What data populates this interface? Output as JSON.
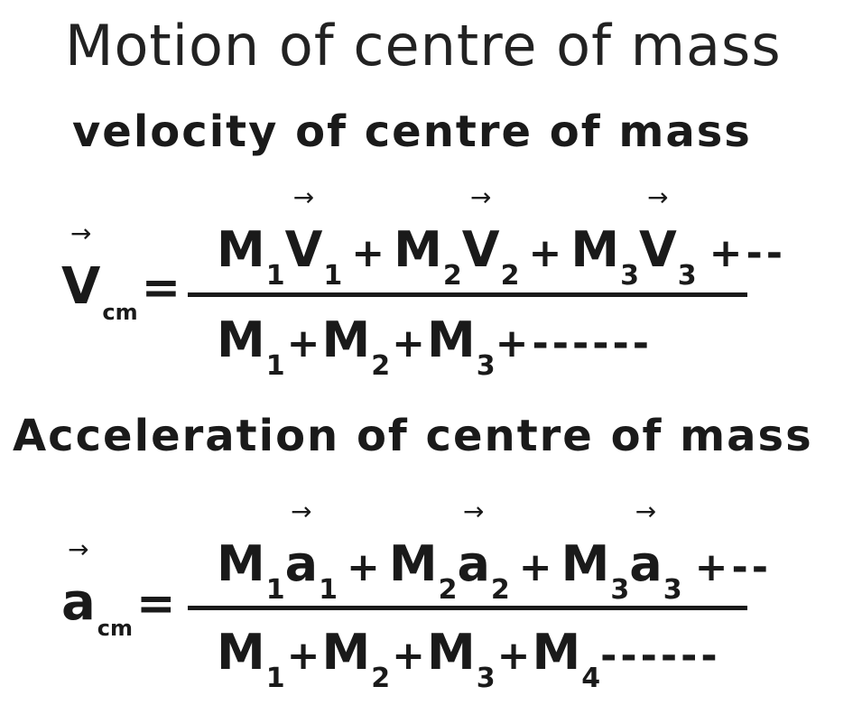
{
  "title": "Motion of centre of mass",
  "velocity": {
    "heading": "velocity of centre of mass",
    "lhs_symbol": "V",
    "lhs_subscript": "cm",
    "equals": "=",
    "arrow": "→",
    "numerator": [
      {
        "m": "M",
        "ms": "1",
        "v": "V",
        "vs": "1"
      },
      {
        "m": "M",
        "ms": "2",
        "v": "V",
        "vs": "2"
      },
      {
        "m": "M",
        "ms": "3",
        "v": "V",
        "vs": "3"
      }
    ],
    "plus": "+",
    "num_tail": "+--",
    "denominator": [
      {
        "m": "M",
        "ms": "1"
      },
      {
        "m": "M",
        "ms": "2"
      },
      {
        "m": "M",
        "ms": "3"
      }
    ],
    "den_tail": "+------"
  },
  "acceleration": {
    "heading": "Acceleration of centre of mass",
    "lhs_symbol": "a",
    "lhs_subscript": "cm",
    "equals": "=",
    "arrow": "→",
    "numerator": [
      {
        "m": "M",
        "ms": "1",
        "v": "a",
        "vs": "1"
      },
      {
        "m": "M",
        "ms": "2",
        "v": "a",
        "vs": "2"
      },
      {
        "m": "M",
        "ms": "3",
        "v": "a",
        "vs": "3"
      }
    ],
    "plus": "+",
    "num_tail": "+--",
    "denominator": [
      {
        "m": "M",
        "ms": "1"
      },
      {
        "m": "M",
        "ms": "2"
      },
      {
        "m": "M",
        "ms": "3"
      },
      {
        "m": "M",
        "ms": "4"
      }
    ],
    "den_tail": "------"
  }
}
